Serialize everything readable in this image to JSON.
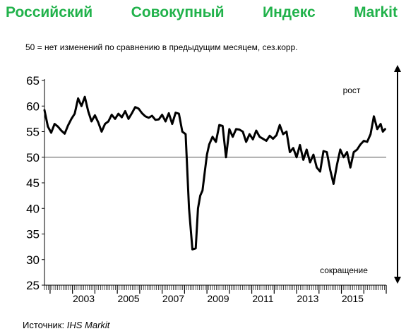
{
  "title_words": [
    "Российский",
    "Совокупный",
    "Индекс",
    "Markit"
  ],
  "subtitle": "50 = нет изменений по сравнению в предыдущим месяцем, сез.корр.",
  "source_prefix": "Источник: ",
  "source_name": "IHS Markit",
  "chart_data": {
    "type": "line",
    "title": "Российский Совокупный Индекс Markit",
    "ylim": [
      25,
      65
    ],
    "yticks": [
      25,
      30,
      35,
      40,
      45,
      50,
      55,
      60,
      65
    ],
    "ytick_labels": [
      "25",
      "30",
      "35",
      "40",
      "45",
      "50",
      "55",
      "60",
      "65"
    ],
    "xlim": [
      2001.75,
      2017.0
    ],
    "xtick_labels": [
      "2003",
      "2005",
      "2007",
      "2009",
      "2011",
      "2013",
      "2015"
    ],
    "reference_line": 50,
    "annotations": [
      "рост",
      "сокращение"
    ],
    "grid": false,
    "series": [
      {
        "color": "#000000",
        "x": [
          2001.75,
          2001.9,
          2002.05,
          2002.2,
          2002.35,
          2002.5,
          2002.65,
          2002.8,
          2002.95,
          2003.1,
          2003.25,
          2003.4,
          2003.55,
          2003.7,
          2003.85,
          2004.0,
          2004.15,
          2004.3,
          2004.45,
          2004.6,
          2004.75,
          2004.9,
          2005.05,
          2005.2,
          2005.35,
          2005.5,
          2005.65,
          2005.8,
          2005.95,
          2006.1,
          2006.25,
          2006.4,
          2006.55,
          2006.7,
          2006.85,
          2007.0,
          2007.15,
          2007.3,
          2007.45,
          2007.6,
          2007.75,
          2007.9,
          2008.05,
          2008.2,
          2008.35,
          2008.5,
          2008.6,
          2008.7,
          2008.8,
          2008.9,
          2009.0,
          2009.1,
          2009.25,
          2009.4,
          2009.55,
          2009.7,
          2009.85,
          2010.0,
          2010.15,
          2010.3,
          2010.45,
          2010.6,
          2010.75,
          2010.9,
          2011.05,
          2011.2,
          2011.35,
          2011.5,
          2011.65,
          2011.8,
          2011.95,
          2012.1,
          2012.25,
          2012.4,
          2012.55,
          2012.7,
          2012.85,
          2013.0,
          2013.15,
          2013.3,
          2013.45,
          2013.6,
          2013.75,
          2013.9,
          2014.05,
          2014.2,
          2014.35,
          2014.5,
          2014.65,
          2014.8,
          2014.95,
          2015.1,
          2015.25,
          2015.4,
          2015.55,
          2015.7,
          2015.85,
          2016.0,
          2016.15,
          2016.3,
          2016.45,
          2016.6,
          2016.75,
          2016.85,
          2016.95
        ],
        "values": [
          59.2,
          56.0,
          54.8,
          56.5,
          56.0,
          55.2,
          54.6,
          56.2,
          57.5,
          58.5,
          61.5,
          60.0,
          61.8,
          59.0,
          57.0,
          58.2,
          56.8,
          55.0,
          56.5,
          57.0,
          58.3,
          57.5,
          58.5,
          57.8,
          59.0,
          57.5,
          58.6,
          59.8,
          59.5,
          58.6,
          58.0,
          57.7,
          58.1,
          57.3,
          57.4,
          58.3,
          57.0,
          58.6,
          56.5,
          58.7,
          58.5,
          55.0,
          54.5,
          40.0,
          32.0,
          32.2,
          40.0,
          42.5,
          43.5,
          47.0,
          50.5,
          52.5,
          54.0,
          53.0,
          56.3,
          56.1,
          50.0,
          55.5,
          54.0,
          55.5,
          55.4,
          55.0,
          53.0,
          54.5,
          53.5,
          55.2,
          54.0,
          53.6,
          53.2,
          54.2,
          53.6,
          54.3,
          56.3,
          54.5,
          55.0,
          51.0,
          51.8,
          50.0,
          52.4,
          49.5,
          51.5,
          49.0,
          50.5,
          48.0,
          47.2,
          51.2,
          51.0,
          47.5,
          44.8,
          48.5,
          51.5,
          50.0,
          51.0,
          48.0,
          51.0,
          51.5,
          52.5,
          53.2,
          53.0,
          54.5,
          58.0,
          55.5,
          56.5,
          55.0,
          55.5
        ]
      }
    ]
  }
}
